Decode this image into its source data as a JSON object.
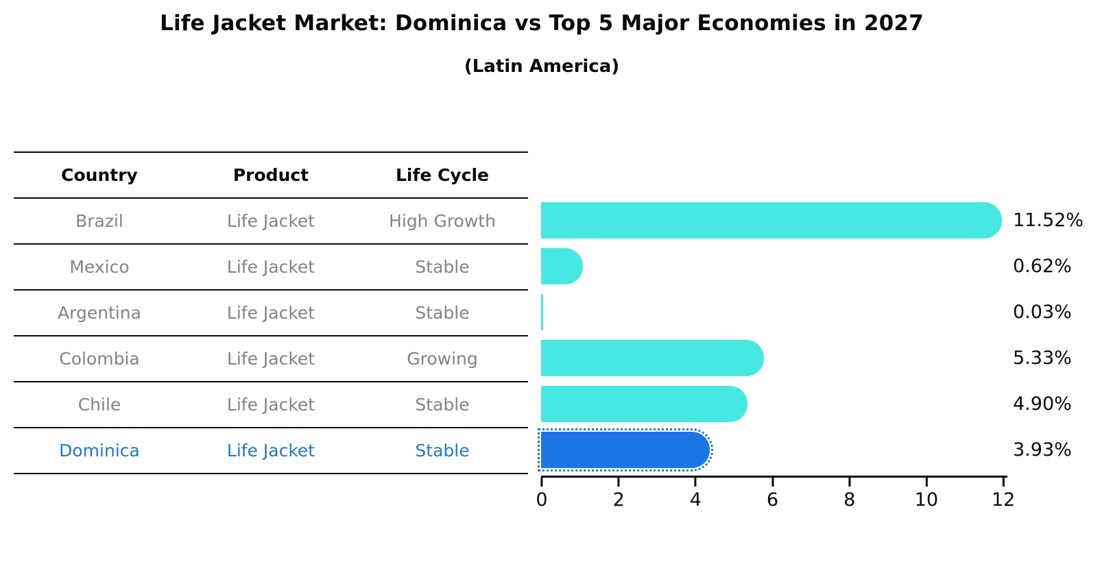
{
  "title": "Life Jacket Market: Dominica vs Top 5 Major Economies in 2027",
  "subtitle": "(Latin America)",
  "table": {
    "headers": [
      "Country",
      "Product",
      "Life Cycle"
    ],
    "rows": [
      {
        "country": "Brazil",
        "product": "Life Jacket",
        "life_cycle": "High Growth"
      },
      {
        "country": "Mexico",
        "product": "Life Jacket",
        "life_cycle": "Stable"
      },
      {
        "country": "Argentina",
        "product": "Life Jacket",
        "life_cycle": "Stable"
      },
      {
        "country": "Colombia",
        "product": "Life Jacket",
        "life_cycle": "Growing"
      },
      {
        "country": "Chile",
        "product": "Life Jacket",
        "life_cycle": "Stable"
      },
      {
        "country": "Dominica",
        "product": "Life Jacket",
        "life_cycle": "Stable"
      }
    ],
    "highlight_row_index": 5
  },
  "chart_data": {
    "type": "bar",
    "orientation": "horizontal",
    "title": "Life Jacket Market: Dominica vs Top 5 Major Economies in 2027",
    "subtitle": "(Latin America)",
    "categories": [
      "Brazil",
      "Mexico",
      "Argentina",
      "Colombia",
      "Chile",
      "Dominica"
    ],
    "values": [
      11.52,
      0.62,
      0.03,
      5.33,
      4.9,
      3.93
    ],
    "value_labels": [
      "11.52%",
      "0.62%",
      "0.03%",
      "5.33%",
      "4.90%",
      "3.93%"
    ],
    "x_ticks": [
      0,
      2,
      4,
      6,
      8,
      10,
      12
    ],
    "xlim": [
      0,
      12
    ],
    "xlabel": "",
    "ylabel": "",
    "grid": false,
    "legend": "none",
    "colors": [
      "#46E8E1",
      "#46E8E1",
      "#46E8E1",
      "#46E8E1",
      "#46E8E1",
      "#1B76E3"
    ],
    "highlight_index": 5,
    "highlight_edge_style": "dotted"
  },
  "colors": {
    "bar_cyan": "#46E8E1",
    "bar_blue": "#1B76E3",
    "highlight_text": "#2378C3",
    "table_text": "#838383",
    "axis_and_text": "#0a0a0a"
  }
}
